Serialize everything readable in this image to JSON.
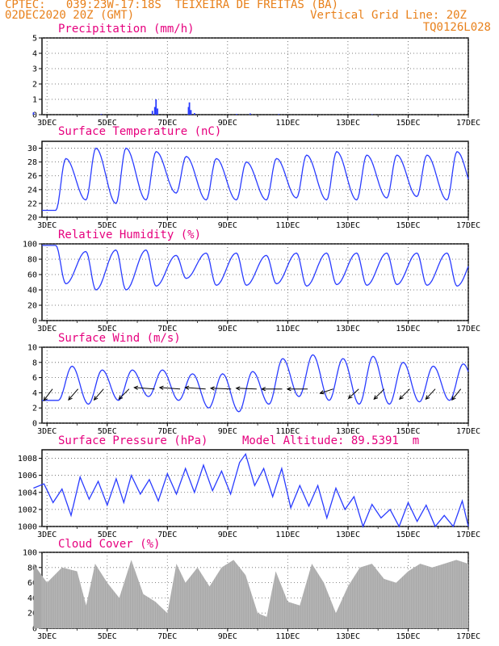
{
  "header": {
    "line1": "CPTEC:   039:23W-17:18S  TEIXEIRA DE FREITAS (BA)",
    "line2_left": "02DEC2020 20Z (GMT)",
    "line2_right": "Vertical Grid Line: 20Z",
    "line3_right": "TQ0126L028"
  },
  "colors": {
    "header": "#e8801a",
    "title": "#e6007e",
    "line": "#2a3cff",
    "cloud": "#a8a8a8",
    "wind_arrow": "#000000"
  },
  "x_ticks": [
    "3DEC",
    "5DEC",
    "7DEC",
    "9DEC",
    "11DEC",
    "13DEC",
    "15DEC",
    "17DEC"
  ],
  "chart_data": [
    {
      "type": "bar",
      "title": "Precipitation (mm/h)",
      "x_range": [
        "02DEC 20Z",
        "17DEC 00Z"
      ],
      "ylim": [
        0,
        5
      ],
      "yticks": [
        "0",
        "1",
        "2",
        "3",
        "4",
        "5"
      ],
      "x_day": [
        2.55,
        4.8,
        6.5,
        6.58,
        6.62,
        6.67,
        7.7,
        7.73,
        7.78,
        7.9,
        9.3,
        9.75,
        10.7,
        13.8
      ],
      "values": [
        0.15,
        0.05,
        0.25,
        0.5,
        1.0,
        0.4,
        0.5,
        0.8,
        0.3,
        0.1,
        0.05,
        0.08,
        0.04,
        0.03
      ]
    },
    {
      "type": "line",
      "title": "Surface Temperature (nC)",
      "ylim": [
        20,
        31
      ],
      "yticks": [
        "20",
        "22",
        "24",
        "26",
        "28",
        "30"
      ],
      "peaks": [
        28.5,
        30.0,
        30.0,
        29.5,
        28.8,
        28.5,
        28.0,
        28.5,
        29.0,
        29.5,
        29.0,
        29.0,
        29.0,
        29.5,
        29.2
      ],
      "minima": [
        21.0,
        22.5,
        22.0,
        22.5,
        23.5,
        22.5,
        22.5,
        22.5,
        22.8,
        22.5,
        22.5,
        22.8,
        23.0,
        22.5,
        22.8
      ]
    },
    {
      "type": "line",
      "title": "Relative Humidity (%)",
      "ylim": [
        0,
        100
      ],
      "yticks": [
        "0",
        "20",
        "40",
        "60",
        "80",
        "100"
      ],
      "maxima": [
        98,
        90,
        92,
        92,
        85,
        88,
        88,
        85,
        88,
        88,
        88,
        88,
        88,
        88,
        88
      ],
      "minima": [
        48,
        40,
        40,
        45,
        55,
        46,
        46,
        48,
        45,
        47,
        46,
        47,
        46,
        45,
        45
      ]
    },
    {
      "type": "line",
      "title": "Surface Wind (m/s)",
      "ylim": [
        0,
        10
      ],
      "yticks": [
        "0",
        "2",
        "4",
        "6",
        "8",
        "10"
      ],
      "maxima": [
        7.5,
        7.0,
        7.0,
        7.0,
        6.5,
        6.5,
        6.8,
        8.5,
        9.0,
        8.5,
        8.8,
        8.0,
        7.5,
        7.8,
        7.5
      ],
      "minima": [
        3.0,
        2.5,
        3.0,
        3.5,
        3.0,
        2.0,
        1.5,
        2.5,
        3.5,
        3.0,
        2.5,
        2.5,
        2.8,
        3.0,
        3.0
      ],
      "vectors_u": [
        -1.2,
        -1.3,
        -1.3,
        -1.4,
        -2.8,
        -2.8,
        -2.8,
        -2.8,
        -2.8,
        -2.8,
        -2.8,
        -1.8,
        -1.4,
        -1.4,
        -1.4,
        -1.3,
        -1.2
      ],
      "vectors_v": [
        -1.6,
        -1.5,
        -1.5,
        -1.4,
        0.2,
        0.2,
        0.2,
        0.1,
        0.1,
        0.0,
        0.0,
        -0.6,
        -1.3,
        -1.4,
        -1.4,
        -1.4,
        -1.5
      ]
    },
    {
      "type": "line",
      "title": "Surface Pressure (hPa)",
      "annotation": "Model Altitude: 89.5391  m",
      "ylim": [
        1000,
        1009
      ],
      "yticks": [
        "1000",
        "1002",
        "1004",
        "1006",
        "1008"
      ],
      "x_day": [
        2.55,
        2.9,
        3.2,
        3.5,
        3.8,
        4.1,
        4.4,
        4.7,
        5.0,
        5.3,
        5.55,
        5.8,
        6.1,
        6.4,
        6.7,
        7.0,
        7.3,
        7.6,
        7.9,
        8.2,
        8.5,
        8.8,
        9.1,
        9.4,
        9.6,
        9.9,
        10.2,
        10.5,
        10.8,
        11.1,
        11.4,
        11.7,
        12.0,
        12.3,
        12.6,
        12.9,
        13.2,
        13.5,
        13.8,
        14.1,
        14.4,
        14.7,
        15.0,
        15.3,
        15.6,
        15.9,
        16.2,
        16.5,
        16.8,
        17.0
      ],
      "values": [
        1004.5,
        1005.0,
        1002.8,
        1004.4,
        1001.3,
        1005.8,
        1003.2,
        1005.3,
        1002.5,
        1005.6,
        1002.8,
        1006.0,
        1003.8,
        1005.5,
        1003.0,
        1006.2,
        1003.8,
        1006.8,
        1004.0,
        1007.2,
        1004.2,
        1006.5,
        1003.8,
        1007.5,
        1008.5,
        1004.8,
        1006.8,
        1003.5,
        1006.8,
        1002.2,
        1004.8,
        1002.4,
        1004.8,
        1001.0,
        1004.5,
        1002.0,
        1003.5,
        999.5,
        1002.6,
        1001.0,
        1002.0,
        999.8,
        1002.8,
        1000.6,
        1002.5,
        999.5,
        1001.3,
        999.8,
        1003.0,
        999.8
      ]
    },
    {
      "type": "area",
      "title": "Cloud Cover (%)",
      "ylim": [
        0,
        100
      ],
      "yticks": [
        "0",
        "20",
        "40",
        "60",
        "80",
        "100"
      ],
      "x_day": [
        2.55,
        3.0,
        3.5,
        4.0,
        4.3,
        4.6,
        5.0,
        5.4,
        5.8,
        6.2,
        6.6,
        7.0,
        7.3,
        7.6,
        8.0,
        8.4,
        8.8,
        9.2,
        9.6,
        10.0,
        10.3,
        10.6,
        11.0,
        11.4,
        11.8,
        12.2,
        12.6,
        13.0,
        13.4,
        13.8,
        14.2,
        14.6,
        15.0,
        15.4,
        15.8,
        16.2,
        16.6,
        17.0
      ],
      "values": [
        85,
        60,
        80,
        75,
        30,
        85,
        60,
        40,
        90,
        45,
        35,
        20,
        85,
        60,
        80,
        55,
        80,
        90,
        70,
        20,
        15,
        75,
        35,
        30,
        85,
        60,
        20,
        55,
        80,
        85,
        65,
        60,
        75,
        85,
        80,
        85,
        90,
        85
      ]
    }
  ]
}
